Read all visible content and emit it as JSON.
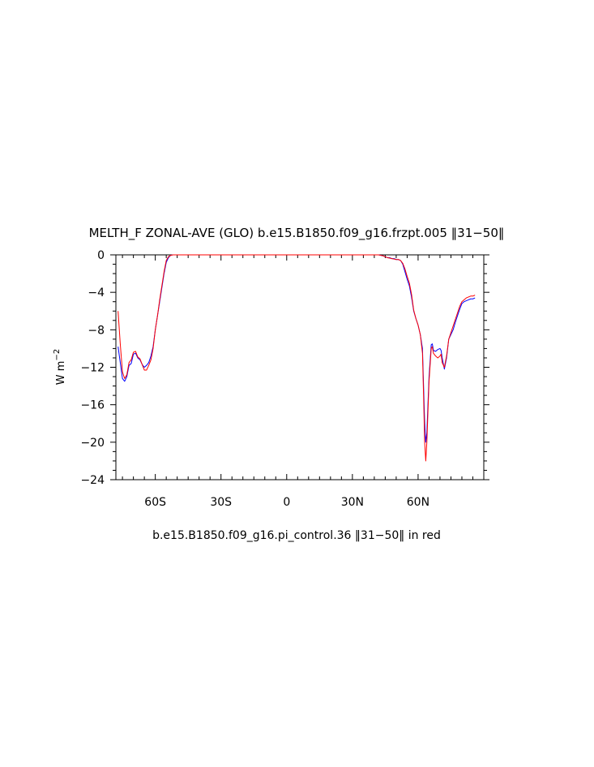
{
  "chart_data": {
    "type": "line",
    "title": "MELTH_F ZONAL-AVE (GLO) b.e15.B1850.f09_g16.frzpt.005 ‖31−50‖",
    "ylabel": "W m",
    "ylabel_superscript": "−2",
    "xlabel": "",
    "caption": "b.e15.B1850.f09_g16.pi_control.36 ‖31−50‖ in red",
    "xlim": [
      -78,
      90
    ],
    "ylim": [
      -24,
      0
    ],
    "x_ticks": [
      {
        "value": -60,
        "label": "60S"
      },
      {
        "value": -30,
        "label": "30S"
      },
      {
        "value": 0,
        "label": "0"
      },
      {
        "value": 30,
        "label": "30N"
      },
      {
        "value": 60,
        "label": "60N"
      }
    ],
    "y_ticks": [
      {
        "value": 0,
        "label": "0"
      },
      {
        "value": -4,
        "label": "−4"
      },
      {
        "value": -8,
        "label": "−8"
      },
      {
        "value": -12,
        "label": "−12"
      },
      {
        "value": -16,
        "label": "−16"
      },
      {
        "value": -20,
        "label": "−20"
      },
      {
        "value": -24,
        "label": "−24"
      }
    ],
    "grid": false,
    "series": [
      {
        "color": "#0000ff",
        "points": [
          [
            -77,
            -9.8
          ],
          [
            -76,
            -11.5
          ],
          [
            -75,
            -13.2
          ],
          [
            -74,
            -13.5
          ],
          [
            -73,
            -13.0
          ],
          [
            -72,
            -11.8
          ],
          [
            -71,
            -11.6
          ],
          [
            -70,
            -10.6
          ],
          [
            -69,
            -10.5
          ],
          [
            -68,
            -11.0
          ],
          [
            -67,
            -11.2
          ],
          [
            -66,
            -11.7
          ],
          [
            -65,
            -12.0
          ],
          [
            -64,
            -11.8
          ],
          [
            -63,
            -11.5
          ],
          [
            -62,
            -10.8
          ],
          [
            -61,
            -9.8
          ],
          [
            -60,
            -8.0
          ],
          [
            -59,
            -6.5
          ],
          [
            -58,
            -5.0
          ],
          [
            -57,
            -3.5
          ],
          [
            -56,
            -2.0
          ],
          [
            -55,
            -0.8
          ],
          [
            -54,
            -0.3
          ],
          [
            -53,
            -0.05
          ],
          [
            -52,
            0
          ],
          [
            -40,
            0
          ],
          [
            0,
            0
          ],
          [
            40,
            0
          ],
          [
            42,
            0
          ],
          [
            43,
            -0.05
          ],
          [
            44,
            -0.1
          ],
          [
            45,
            -0.2
          ],
          [
            46,
            -0.3
          ],
          [
            47,
            -0.3
          ],
          [
            48,
            -0.4
          ],
          [
            49,
            -0.4
          ],
          [
            50,
            -0.5
          ],
          [
            51,
            -0.5
          ],
          [
            52,
            -0.6
          ],
          [
            53,
            -1.0
          ],
          [
            54,
            -1.8
          ],
          [
            55,
            -2.6
          ],
          [
            56,
            -3.3
          ],
          [
            57,
            -4.5
          ],
          [
            58,
            -6.0
          ],
          [
            59,
            -6.8
          ],
          [
            60,
            -7.5
          ],
          [
            61,
            -8.5
          ],
          [
            62,
            -10.0
          ],
          [
            62.5,
            -14.0
          ],
          [
            63,
            -18.0
          ],
          [
            63.5,
            -20.0
          ],
          [
            64,
            -19.0
          ],
          [
            65,
            -13.0
          ],
          [
            66,
            -9.6
          ],
          [
            66.5,
            -9.5
          ],
          [
            67,
            -10.2
          ],
          [
            68,
            -10.3
          ],
          [
            69,
            -10.1
          ],
          [
            70,
            -10.0
          ],
          [
            70.5,
            -10.2
          ],
          [
            71,
            -11.0
          ],
          [
            72,
            -12.2
          ],
          [
            73,
            -11.0
          ],
          [
            74,
            -9.0
          ],
          [
            75,
            -8.5
          ],
          [
            76,
            -8.0
          ],
          [
            77,
            -7.2
          ],
          [
            78,
            -6.5
          ],
          [
            79,
            -5.8
          ],
          [
            80,
            -5.2
          ],
          [
            81,
            -5.0
          ],
          [
            82,
            -4.9
          ],
          [
            83,
            -4.8
          ],
          [
            84,
            -4.7
          ],
          [
            85,
            -4.7
          ],
          [
            86,
            -4.6
          ]
        ]
      },
      {
        "color": "#ff0000",
        "points": [
          [
            -77,
            -6.0
          ],
          [
            -76,
            -9.5
          ],
          [
            -75,
            -12.5
          ],
          [
            -74,
            -13.2
          ],
          [
            -73,
            -12.8
          ],
          [
            -72,
            -11.5
          ],
          [
            -71,
            -11.2
          ],
          [
            -70,
            -10.4
          ],
          [
            -69,
            -10.3
          ],
          [
            -68,
            -10.9
          ],
          [
            -67,
            -11.1
          ],
          [
            -66,
            -11.7
          ],
          [
            -65,
            -12.3
          ],
          [
            -64,
            -12.3
          ],
          [
            -63,
            -11.8
          ],
          [
            -62,
            -11.2
          ],
          [
            -61,
            -10.0
          ],
          [
            -60,
            -8.0
          ],
          [
            -59,
            -6.5
          ],
          [
            -58,
            -4.8
          ],
          [
            -57,
            -3.3
          ],
          [
            -56,
            -1.8
          ],
          [
            -55,
            -0.6
          ],
          [
            -54,
            -0.2
          ],
          [
            -53,
            -0.05
          ],
          [
            -52,
            0
          ],
          [
            -40,
            0
          ],
          [
            0,
            0
          ],
          [
            40,
            0
          ],
          [
            42,
            0
          ],
          [
            43,
            -0.05
          ],
          [
            44,
            -0.1
          ],
          [
            45,
            -0.2
          ],
          [
            46,
            -0.3
          ],
          [
            47,
            -0.35
          ],
          [
            48,
            -0.4
          ],
          [
            49,
            -0.45
          ],
          [
            50,
            -0.5
          ],
          [
            51,
            -0.5
          ],
          [
            52,
            -0.6
          ],
          [
            53,
            -0.9
          ],
          [
            54,
            -1.5
          ],
          [
            55,
            -2.3
          ],
          [
            56,
            -3.0
          ],
          [
            57,
            -4.2
          ],
          [
            58,
            -5.9
          ],
          [
            59,
            -6.8
          ],
          [
            60,
            -7.5
          ],
          [
            61,
            -8.5
          ],
          [
            62,
            -10.5
          ],
          [
            62.5,
            -15.0
          ],
          [
            63,
            -20.0
          ],
          [
            63.5,
            -22.0
          ],
          [
            64,
            -20.0
          ],
          [
            65,
            -13.5
          ],
          [
            66,
            -10.0
          ],
          [
            66.5,
            -9.8
          ],
          [
            67,
            -10.5
          ],
          [
            68,
            -10.8
          ],
          [
            69,
            -11.0
          ],
          [
            70,
            -10.8
          ],
          [
            70.5,
            -10.6
          ],
          [
            71,
            -11.5
          ],
          [
            72,
            -12.0
          ],
          [
            73,
            -10.8
          ],
          [
            74,
            -9.0
          ],
          [
            75,
            -8.3
          ],
          [
            76,
            -7.6
          ],
          [
            77,
            -6.9
          ],
          [
            78,
            -6.2
          ],
          [
            79,
            -5.5
          ],
          [
            80,
            -5.0
          ],
          [
            81,
            -4.8
          ],
          [
            82,
            -4.6
          ],
          [
            83,
            -4.5
          ],
          [
            84,
            -4.4
          ],
          [
            85,
            -4.4
          ],
          [
            86,
            -4.3
          ]
        ]
      }
    ]
  }
}
